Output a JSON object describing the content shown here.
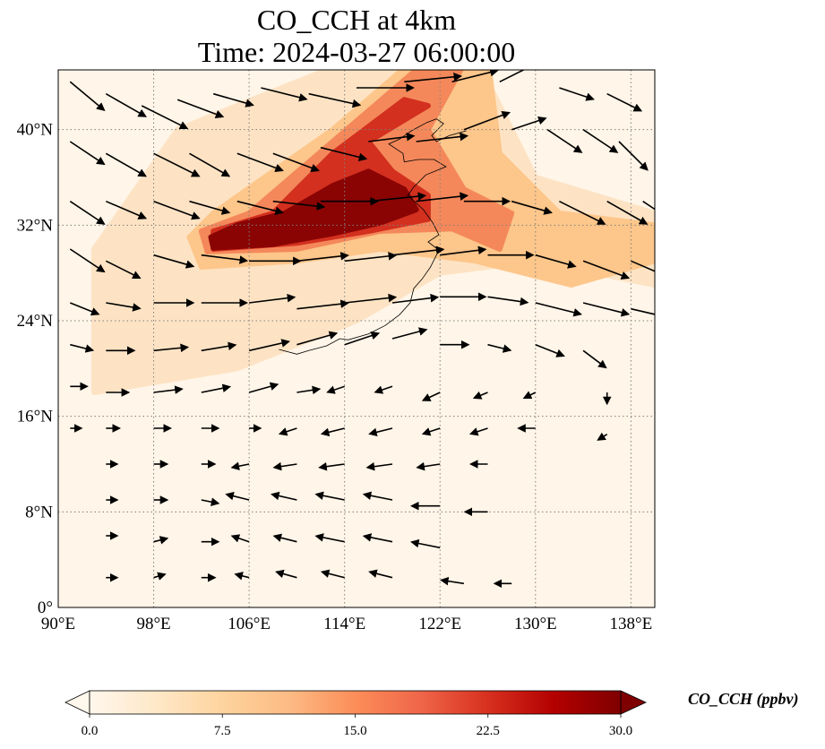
{
  "title": {
    "line1": "CO_CCH at 4km",
    "line2": "Time: 2024-03-27 06:00:00"
  },
  "map": {
    "projection": "PlateCarree",
    "lon_range": [
      90,
      140
    ],
    "lat_range": [
      0,
      45
    ],
    "gridlines": "dotted",
    "lon_ticks": [
      {
        "value": 90,
        "label": "90°E"
      },
      {
        "value": 98,
        "label": "98°E"
      },
      {
        "value": 106,
        "label": "106°E"
      },
      {
        "value": 114,
        "label": "114°E"
      },
      {
        "value": 122,
        "label": "122°E"
      },
      {
        "value": 130,
        "label": "130°E"
      },
      {
        "value": 138,
        "label": "138°E"
      }
    ],
    "lat_ticks": [
      {
        "value": 0,
        "label": "0°"
      },
      {
        "value": 8,
        "label": "8°N"
      },
      {
        "value": 16,
        "label": "16°N"
      },
      {
        "value": 24,
        "label": "24°N"
      },
      {
        "value": 32,
        "label": "32°N"
      },
      {
        "value": 40,
        "label": "40°N"
      }
    ],
    "plume": {
      "colormap": "OrRd",
      "background_color": "#fff5e8",
      "layers": [
        {
          "level": 3,
          "color": "#fde3c4",
          "polygon": [
            [
              93,
              18
            ],
            [
              105,
              20
            ],
            [
              115,
              24
            ],
            [
              122,
              28
            ],
            [
              130,
              29
            ],
            [
              140,
              27
            ],
            [
              140,
              33
            ],
            [
              130,
              36
            ],
            [
              125,
              46
            ],
            [
              115,
              46
            ],
            [
              100,
              40
            ],
            [
              93,
              30
            ]
          ]
        },
        {
          "level": 9,
          "color": "#fdc68a",
          "polygon": [
            [
              102,
              28.5
            ],
            [
              110,
              29
            ],
            [
              117,
              30
            ],
            [
              125,
              29
            ],
            [
              133,
              27
            ],
            [
              140,
              29
            ],
            [
              140,
              32
            ],
            [
              132,
              33
            ],
            [
              127,
              38
            ],
            [
              126,
              46
            ],
            [
              120,
              46
            ],
            [
              113,
              40
            ],
            [
              103,
              33
            ],
            [
              101,
              31
            ]
          ]
        },
        {
          "level": 15,
          "color": "#f4885a",
          "polygon": [
            [
              102.5,
              29.8
            ],
            [
              110,
              30
            ],
            [
              117,
              31.5
            ],
            [
              123,
              31.7
            ],
            [
              127,
              30
            ],
            [
              128,
              33
            ],
            [
              124,
              35
            ],
            [
              121,
              40
            ],
            [
              124,
              45.5
            ],
            [
              120,
              45
            ],
            [
              113,
              39
            ],
            [
              106,
              33
            ],
            [
              102,
              31.5
            ]
          ]
        },
        {
          "level": 22,
          "color": "#d3301f",
          "polygon": [
            [
              103,
              30
            ],
            [
              110,
              30.5
            ],
            [
              116,
              31.5
            ],
            [
              121,
              32.5
            ],
            [
              121,
              34.5
            ],
            [
              118,
              36.5
            ],
            [
              116,
              39
            ],
            [
              121,
              42
            ],
            [
              119,
              42.5
            ],
            [
              113,
              38
            ],
            [
              108,
              33
            ],
            [
              103,
              31.5
            ]
          ]
        },
        {
          "level": 28,
          "color": "#8a0404",
          "polygon": [
            [
              103,
              30.1
            ],
            [
              108,
              30.4
            ],
            [
              113,
              31.3
            ],
            [
              117,
              32.2
            ],
            [
              120,
              33.3
            ],
            [
              119,
              35
            ],
            [
              116,
              36.5
            ],
            [
              113,
              35.3
            ],
            [
              109,
              33
            ],
            [
              105,
              32
            ],
            [
              102.8,
              31
            ]
          ]
        }
      ]
    },
    "wind_vector_scale": 0.95,
    "coastlines": [
      [
        [
          108.5,
          21.6
        ],
        [
          110,
          21.2
        ],
        [
          111,
          21.5
        ],
        [
          112.5,
          21.9
        ],
        [
          113.6,
          22.5
        ],
        [
          114.3,
          22.4
        ],
        [
          116,
          22.9
        ],
        [
          117.4,
          23.6
        ],
        [
          118.6,
          24.5
        ],
        [
          119.5,
          25.5
        ],
        [
          119.8,
          26.7
        ],
        [
          120.5,
          27.5
        ],
        [
          121.2,
          28.5
        ],
        [
          121.9,
          29.9
        ],
        [
          121,
          30.6
        ],
        [
          121.9,
          31.2
        ],
        [
          121.4,
          32.2
        ],
        [
          120.6,
          33.3
        ],
        [
          119.3,
          34.5
        ],
        [
          119.8,
          35.2
        ],
        [
          120.8,
          36.2
        ],
        [
          122.5,
          36.9
        ],
        [
          121.5,
          37.5
        ],
        [
          120.2,
          37.5
        ],
        [
          119,
          37.3
        ],
        [
          118.9,
          38
        ],
        [
          117.7,
          38.8
        ],
        [
          118.6,
          39.2
        ],
        [
          119.6,
          39.9
        ],
        [
          120.9,
          40.6
        ],
        [
          121.7,
          40.9
        ],
        [
          122.3,
          40.5
        ],
        [
          121.3,
          39.5
        ],
        [
          121.7,
          39.0
        ],
        [
          122.8,
          39.5
        ],
        [
          124.2,
          39.9
        ]
      ]
    ],
    "wind_vectors": [
      [
        91,
        44,
        3,
        -2.5
      ],
      [
        94,
        43,
        3.5,
        -2
      ],
      [
        97,
        42,
        4,
        -2
      ],
      [
        100,
        42.5,
        4,
        -1.5
      ],
      [
        103,
        43,
        3.5,
        -1
      ],
      [
        107,
        43.5,
        4,
        -1
      ],
      [
        111,
        43,
        4.5,
        -1
      ],
      [
        115,
        43.5,
        5,
        0
      ],
      [
        119,
        44,
        5,
        0.5
      ],
      [
        123,
        44,
        4,
        1
      ],
      [
        127,
        44,
        4,
        2
      ],
      [
        132,
        43.5,
        3,
        -1
      ],
      [
        136,
        43,
        3,
        -1.5
      ],
      [
        91,
        39,
        3,
        -2
      ],
      [
        94,
        38,
        3.5,
        -2
      ],
      [
        98,
        38,
        4,
        -2
      ],
      [
        101,
        38,
        3.5,
        -2
      ],
      [
        105,
        38,
        4,
        -1.5
      ],
      [
        108,
        38,
        4,
        -1.5
      ],
      [
        112,
        38.5,
        4,
        -1
      ],
      [
        116,
        39,
        4,
        0.5
      ],
      [
        120,
        39,
        4.5,
        0.5
      ],
      [
        124,
        40,
        4,
        1.5
      ],
      [
        128,
        40,
        3,
        1
      ],
      [
        131,
        40,
        3,
        -2
      ],
      [
        134,
        40,
        3,
        -2
      ],
      [
        137,
        39,
        2.5,
        -2.5
      ],
      [
        91,
        34,
        3,
        -2
      ],
      [
        94,
        34,
        3.5,
        -1.5
      ],
      [
        98,
        34,
        4,
        -1.5
      ],
      [
        101,
        34,
        3.5,
        -1
      ],
      [
        105,
        34,
        4,
        -1
      ],
      [
        108,
        34,
        4.5,
        -0.5
      ],
      [
        112,
        34,
        5,
        0
      ],
      [
        116,
        34,
        5,
        0.5
      ],
      [
        120,
        34,
        4.5,
        0.5
      ],
      [
        124,
        34,
        4,
        0
      ],
      [
        128,
        34,
        3.5,
        -1
      ],
      [
        132,
        34,
        4,
        -2
      ],
      [
        136,
        34,
        3.5,
        -2
      ],
      [
        139,
        34,
        3,
        -2
      ],
      [
        91,
        30,
        3,
        -2
      ],
      [
        94,
        29,
        3,
        -1.5
      ],
      [
        98,
        29.5,
        3.5,
        -1
      ],
      [
        102,
        29.5,
        4,
        -0.5
      ],
      [
        106,
        29,
        4.5,
        0
      ],
      [
        110,
        29,
        4.5,
        0.5
      ],
      [
        114,
        29,
        4.5,
        0.5
      ],
      [
        118,
        29.5,
        4.5,
        0.5
      ],
      [
        122,
        29.5,
        4,
        0.5
      ],
      [
        126,
        29.5,
        4,
        0
      ],
      [
        130,
        29.5,
        3.5,
        -1
      ],
      [
        134,
        29,
        4,
        -1.5
      ],
      [
        138,
        29,
        3.5,
        -1.5
      ],
      [
        91,
        25.5,
        2.5,
        -1
      ],
      [
        94,
        25.5,
        3,
        -0.5
      ],
      [
        98,
        25.5,
        3.5,
        0
      ],
      [
        102,
        25.5,
        4,
        0
      ],
      [
        106,
        25.5,
        4,
        0.5
      ],
      [
        110,
        25,
        4.5,
        0.5
      ],
      [
        114,
        25.5,
        4.5,
        0.5
      ],
      [
        118,
        25.5,
        4,
        0.5
      ],
      [
        122,
        26,
        4,
        0
      ],
      [
        126,
        26,
        3.5,
        -0.5
      ],
      [
        130,
        25.5,
        4,
        -1
      ],
      [
        134,
        25.5,
        4,
        -1
      ],
      [
        138,
        25,
        3,
        -0.7
      ],
      [
        91,
        22,
        2,
        -0.5
      ],
      [
        94,
        21.5,
        2.5,
        0
      ],
      [
        98,
        21.5,
        3,
        0.3
      ],
      [
        102,
        21.5,
        3,
        0.5
      ],
      [
        106,
        21.5,
        3.5,
        0.8
      ],
      [
        110,
        22,
        3.5,
        1
      ],
      [
        114,
        22,
        3,
        1
      ],
      [
        118,
        22.5,
        3,
        0.8
      ],
      [
        122,
        22,
        2.5,
        0
      ],
      [
        126,
        22,
        2,
        -0.5
      ],
      [
        130,
        22,
        2.5,
        -1
      ],
      [
        134,
        21.5,
        2,
        -1.5
      ],
      [
        91,
        18.5,
        1.5,
        0
      ],
      [
        94,
        18,
        2,
        0
      ],
      [
        98,
        18,
        2.5,
        0.3
      ],
      [
        102,
        18,
        2.5,
        0.5
      ],
      [
        106,
        18,
        2.5,
        0.7
      ],
      [
        110,
        18,
        2,
        0.3
      ],
      [
        114,
        18.5,
        -1.5,
        -0.5
      ],
      [
        118,
        18.5,
        -1.5,
        -0.5
      ],
      [
        122,
        18,
        -1.5,
        -0.7
      ],
      [
        126,
        18,
        -1.2,
        -0.5
      ],
      [
        130,
        18,
        -1,
        -0.5
      ],
      [
        136,
        18,
        0,
        -1
      ],
      [
        91,
        15,
        1,
        0
      ],
      [
        94,
        15,
        1.2,
        0
      ],
      [
        98,
        15,
        1.5,
        0
      ],
      [
        102,
        15,
        1.5,
        0
      ],
      [
        106,
        15,
        1,
        0
      ],
      [
        110,
        15,
        -1.5,
        -0.5
      ],
      [
        114,
        15,
        -2,
        -0.5
      ],
      [
        118,
        15,
        -2,
        -0.5
      ],
      [
        122,
        15,
        -1.5,
        -0.5
      ],
      [
        126,
        15,
        -1.5,
        -0.5
      ],
      [
        130,
        15,
        -1.5,
        0
      ],
      [
        136,
        14.5,
        -0.8,
        -0.5
      ],
      [
        94,
        12,
        1,
        0
      ],
      [
        98,
        12,
        1.2,
        0
      ],
      [
        102,
        12,
        1.2,
        0
      ],
      [
        106,
        12,
        -1.5,
        -0.3
      ],
      [
        110,
        12,
        -2,
        -0.3
      ],
      [
        114,
        12,
        -2.2,
        -0.3
      ],
      [
        118,
        12,
        -2.2,
        -0.3
      ],
      [
        122,
        12,
        -2,
        -0.3
      ],
      [
        126,
        12,
        -1.5,
        0
      ],
      [
        94,
        9,
        1,
        0
      ],
      [
        98,
        9,
        1.2,
        0
      ],
      [
        102,
        9,
        1.5,
        -0.3
      ],
      [
        106,
        9,
        -2,
        0.5
      ],
      [
        110,
        9,
        -2.2,
        0.5
      ],
      [
        114,
        9,
        -2.5,
        0.5
      ],
      [
        118,
        9,
        -2.5,
        0.5
      ],
      [
        122,
        8.5,
        -2.5,
        0
      ],
      [
        126,
        8,
        -2,
        0
      ],
      [
        94,
        6,
        1,
        0
      ],
      [
        98,
        5.5,
        1.2,
        0.3
      ],
      [
        102,
        5.5,
        1.5,
        0
      ],
      [
        106,
        5.5,
        -1.5,
        0.5
      ],
      [
        110,
        5.5,
        -2,
        0.5
      ],
      [
        114,
        5.5,
        -2.5,
        0.5
      ],
      [
        118,
        5.5,
        -2.5,
        0.5
      ],
      [
        122,
        5,
        -2.5,
        0.5
      ],
      [
        94,
        2.5,
        1,
        0
      ],
      [
        98,
        2.5,
        1,
        0.3
      ],
      [
        102,
        2.5,
        1.2,
        0
      ],
      [
        106,
        2.5,
        -1.2,
        0.3
      ],
      [
        110,
        2.5,
        -1.8,
        0.5
      ],
      [
        114,
        2.5,
        -2,
        0.5
      ],
      [
        118,
        2.5,
        -2,
        0.5
      ],
      [
        124,
        2,
        -2,
        0.3
      ],
      [
        128,
        2,
        -1.5,
        0
      ]
    ]
  },
  "colorbar": {
    "label": "CO_CCH (ppbv)",
    "min": 0.0,
    "max": 30.0,
    "extend": "both",
    "ticks": [
      {
        "value": 0,
        "label": "0.0"
      },
      {
        "value": 7.5,
        "label": "7.5"
      },
      {
        "value": 15,
        "label": "15.0"
      },
      {
        "value": 22.5,
        "label": "22.5"
      },
      {
        "value": 30,
        "label": "30.0"
      }
    ],
    "stops": [
      "#fff7ec",
      "#fee8c8",
      "#fdd49e",
      "#fdbb84",
      "#fc8d59",
      "#ef6548",
      "#d7301f",
      "#b30000",
      "#7f0000"
    ],
    "under_color": "#fff7ec",
    "over_color": "#7f0000"
  }
}
